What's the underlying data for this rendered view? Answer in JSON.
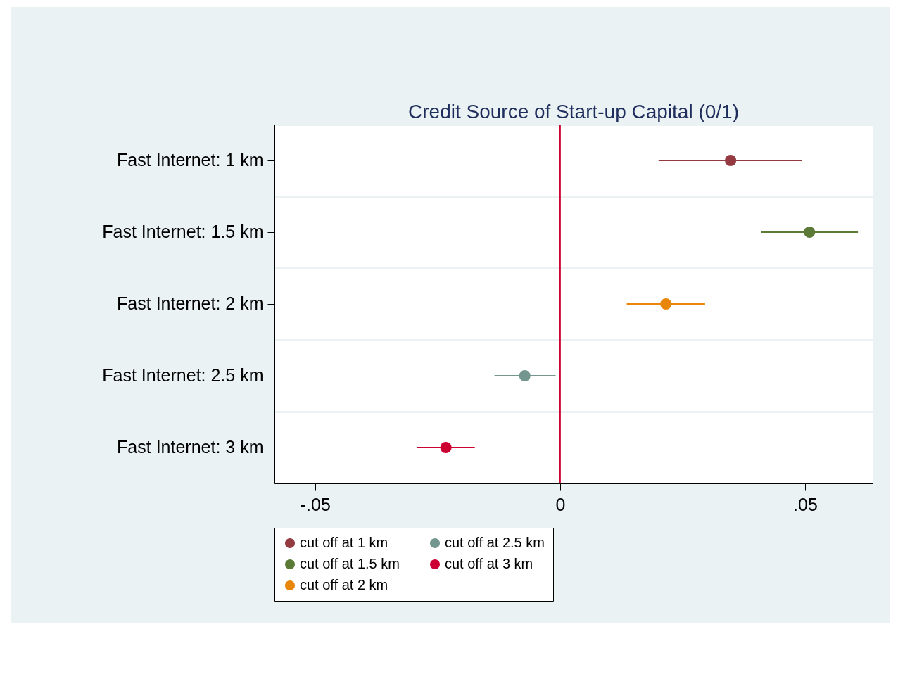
{
  "chart_data": {
    "type": "scatter",
    "title": "Credit Source of Start-up Capital (0/1)",
    "categories": [
      "Fast Internet: 1 km",
      "Fast Internet: 1.5 km",
      "Fast Internet: 2 km",
      "Fast Internet: 2.5 km",
      "Fast Internet: 3 km"
    ],
    "orientation": "horizontal",
    "series": [
      {
        "name": "cut off at 1 km",
        "color": "#943b41",
        "values": [
          0.0348,
          null,
          null,
          null,
          null
        ],
        "errors": [
          [
            0.0201,
            0.0494
          ],
          null,
          null,
          null,
          null
        ]
      },
      {
        "name": "cut off at 1.5 km",
        "color": "#5b7a35",
        "values": [
          null,
          0.0509,
          null,
          null,
          null
        ],
        "errors": [
          null,
          [
            0.0411,
            0.0608
          ],
          null,
          null,
          null
        ]
      },
      {
        "name": "cut off at 2 km",
        "color": "#e8860a",
        "values": [
          null,
          null,
          0.0216,
          null,
          null
        ],
        "errors": [
          null,
          null,
          [
            0.0136,
            0.0296
          ],
          null,
          null
        ]
      },
      {
        "name": "cut off at 2.5 km",
        "color": "#73968e",
        "values": [
          null,
          null,
          null,
          -0.0072,
          null
        ],
        "errors": [
          null,
          null,
          null,
          [
            -0.0134,
            -0.0009
          ],
          null
        ]
      },
      {
        "name": "cut off at 3 km",
        "color": "#cc0033",
        "values": [
          null,
          null,
          null,
          null,
          -0.0233
        ],
        "errors": [
          null,
          null,
          null,
          null,
          [
            -0.0292,
            -0.0174
          ]
        ]
      }
    ],
    "xlim": [
      -0.0583,
      0.0638
    ],
    "xticks": [
      {
        "value": -0.05,
        "label": "-.05"
      },
      0,
      {
        "value": 0.05,
        "label": ".05"
      }
    ],
    "ref_lines": [
      {
        "axis": "x",
        "value": 0,
        "color": "#cc0033"
      }
    ],
    "grid": "y",
    "legend": "bottom",
    "marker": "circle"
  }
}
